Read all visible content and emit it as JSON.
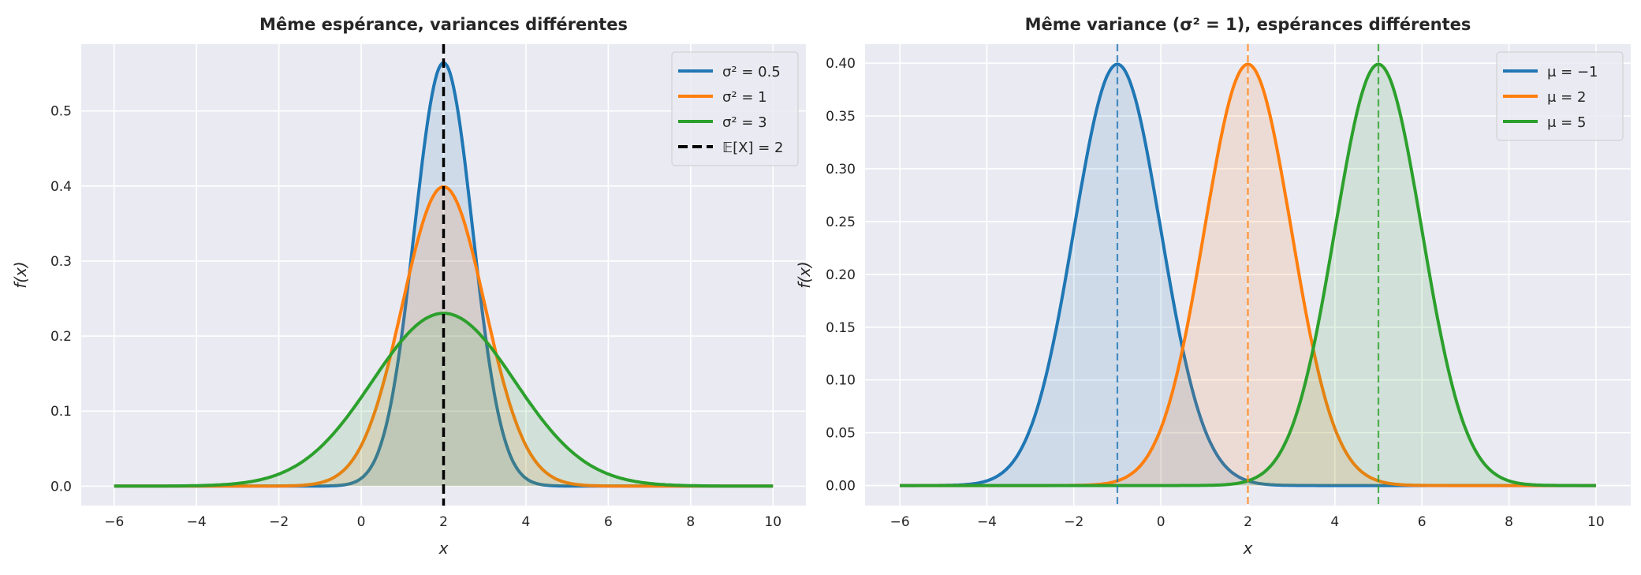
{
  "chart_data": [
    {
      "type": "line",
      "title": "Même espérance, variances différentes",
      "xlabel": "x",
      "ylabel": "f(x)",
      "xlim": [
        -6.8,
        10.8
      ],
      "ylim": [
        -0.026,
        0.589
      ],
      "xticks": [
        -6,
        -4,
        -2,
        0,
        2,
        4,
        6,
        8,
        10
      ],
      "xtick_labels": [
        "−6",
        "−4",
        "−2",
        "0",
        "2",
        "4",
        "6",
        "8",
        "10"
      ],
      "yticks": [
        0.0,
        0.1,
        0.2,
        0.3,
        0.4,
        0.5
      ],
      "ytick_labels": [
        "0.0",
        "0.1",
        "0.2",
        "0.3",
        "0.4",
        "0.5"
      ],
      "grid": true,
      "legend_placement": "top-right",
      "x_domain": [
        -6,
        10
      ],
      "series": [
        {
          "name": "σ² = 0.5",
          "distribution": "normal",
          "mean": 2,
          "variance": 0.5,
          "color": "#1f77b4",
          "fill": true
        },
        {
          "name": "σ² = 1",
          "distribution": "normal",
          "mean": 2,
          "variance": 1,
          "color": "#ff7f0e",
          "fill": true
        },
        {
          "name": "σ² = 3",
          "distribution": "normal",
          "mean": 2,
          "variance": 3,
          "color": "#2ca02c",
          "fill": true
        }
      ],
      "vlines": [
        {
          "name": "𝔼[X] = 2",
          "x": 2,
          "color": "#000000",
          "style": "dashed",
          "in_legend": true
        }
      ]
    },
    {
      "type": "line",
      "title": "Même variance (σ² = 1), espérances différentes",
      "xlabel": "x",
      "ylabel": "f(x)",
      "xlim": [
        -6.8,
        10.8
      ],
      "ylim": [
        -0.019,
        0.418
      ],
      "xticks": [
        -6,
        -4,
        -2,
        0,
        2,
        4,
        6,
        8,
        10
      ],
      "xtick_labels": [
        "−6",
        "−4",
        "−2",
        "0",
        "2",
        "4",
        "6",
        "8",
        "10"
      ],
      "yticks": [
        0.0,
        0.05,
        0.1,
        0.15,
        0.2,
        0.25,
        0.3,
        0.35,
        0.4
      ],
      "ytick_labels": [
        "0.00",
        "0.05",
        "0.10",
        "0.15",
        "0.20",
        "0.25",
        "0.30",
        "0.35",
        "0.40"
      ],
      "grid": true,
      "legend_placement": "top-right",
      "x_domain": [
        -6,
        10
      ],
      "series": [
        {
          "name": "μ = −1",
          "distribution": "normal",
          "mean": -1,
          "variance": 1,
          "color": "#1f77b4",
          "fill": true
        },
        {
          "name": "μ = 2",
          "distribution": "normal",
          "mean": 2,
          "variance": 1,
          "color": "#ff7f0e",
          "fill": true
        },
        {
          "name": "μ = 5",
          "distribution": "normal",
          "mean": 5,
          "variance": 1,
          "color": "#2ca02c",
          "fill": true
        }
      ],
      "vlines": [
        {
          "x": -1,
          "color": "#1f77b4",
          "style": "dashed",
          "in_legend": false
        },
        {
          "x": 2,
          "color": "#ff7f0e",
          "style": "dashed",
          "in_legend": false
        },
        {
          "x": 5,
          "color": "#2ca02c",
          "style": "dashed",
          "in_legend": false
        }
      ]
    }
  ]
}
